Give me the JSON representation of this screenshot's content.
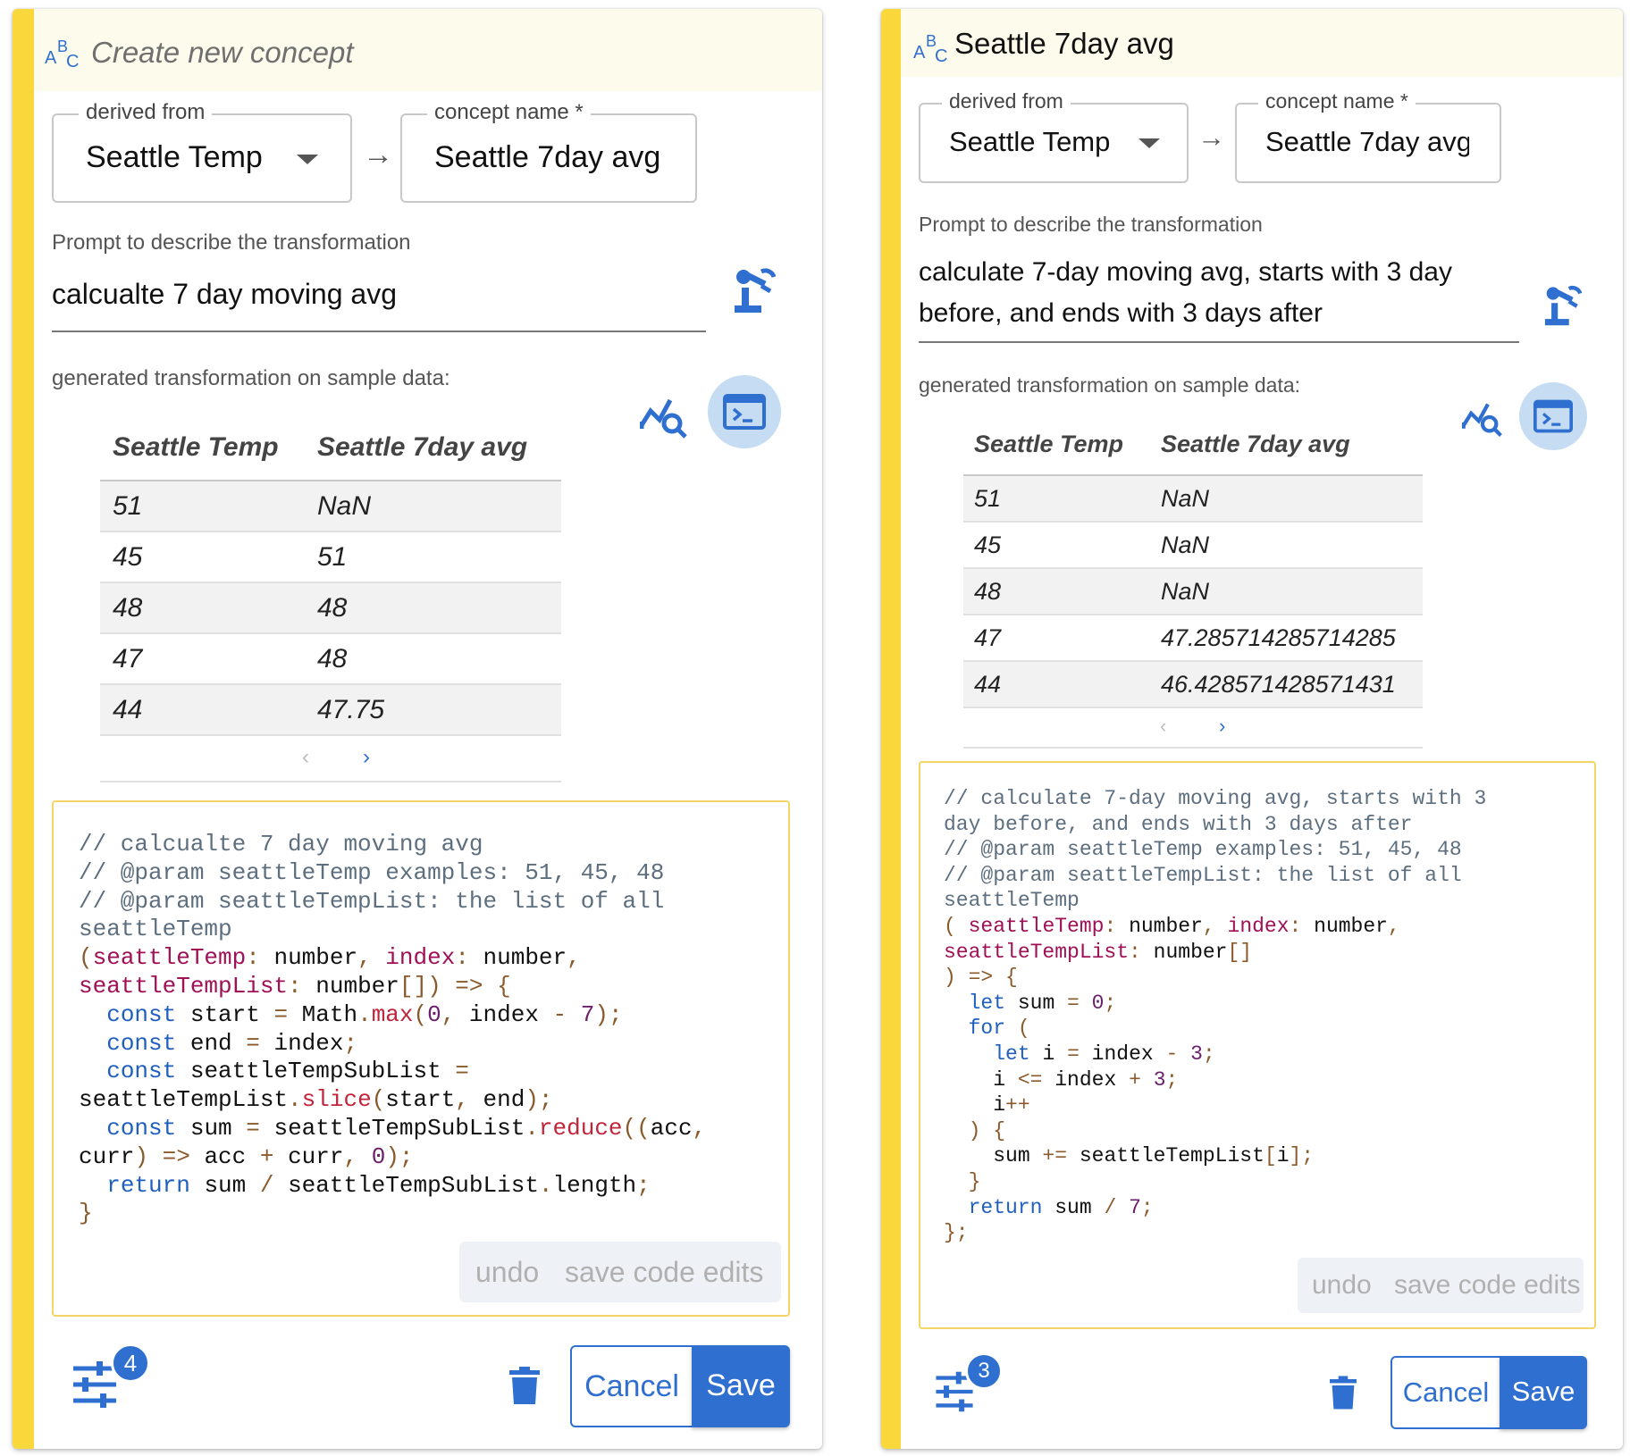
{
  "panels": [
    {
      "title": "Create new concept",
      "derived_from_label": "derived from",
      "derived_from_value": "Seattle Temp",
      "concept_name_label": "concept name *",
      "concept_name_value": "Seattle 7day avg",
      "prompt_label": "Prompt to describe the transformation",
      "prompt_text": "calcualte 7 day moving avg",
      "generated_label": "generated transformation on sample data:",
      "table": {
        "headers": [
          "Seattle Temp",
          "Seattle 7day avg"
        ],
        "rows": [
          [
            "51",
            "NaN"
          ],
          [
            "45",
            "51"
          ],
          [
            "48",
            "48"
          ],
          [
            "47",
            "48"
          ],
          [
            "44",
            "47.75"
          ]
        ]
      },
      "pager": {
        "prev": "‹",
        "next": "›"
      },
      "code_actions": {
        "undo": "undo",
        "save": "save code edits"
      },
      "badge": "4",
      "cancel_label": "Cancel",
      "save_label": "Save"
    },
    {
      "title": "Seattle 7day avg",
      "derived_from_label": "derived from",
      "derived_from_value": "Seattle Temp",
      "concept_name_label": "concept name *",
      "concept_name_value": "Seattle 7day avg",
      "prompt_label": "Prompt to describe the transformation",
      "prompt_text": "calculate 7-day moving avg, starts with 3 day before, and ends with 3 days after",
      "generated_label": "generated transformation on sample data:",
      "table": {
        "headers": [
          "Seattle Temp",
          "Seattle 7day avg"
        ],
        "rows": [
          [
            "51",
            "NaN"
          ],
          [
            "45",
            "NaN"
          ],
          [
            "48",
            "NaN"
          ],
          [
            "47",
            "47.285714285714285"
          ],
          [
            "44",
            "46.428571428571431"
          ]
        ]
      },
      "pager": {
        "prev": "‹",
        "next": "›"
      },
      "code_actions": {
        "undo": "undo",
        "save": "save code edits"
      },
      "badge": "3",
      "cancel_label": "Cancel",
      "save_label": "Save"
    }
  ],
  "code": [
    [
      [
        [
          "c-com",
          "// calcualte 7 day moving avg"
        ]
      ],
      [
        [
          "c-com",
          "// @param seattleTemp examples: 51, 45, 48"
        ]
      ],
      [
        [
          "c-com",
          "// @param seattleTempList: the list of all"
        ]
      ],
      [
        [
          "c-com",
          "seattleTemp"
        ]
      ],
      [
        [
          "c-op",
          "("
        ],
        [
          "c-var",
          "seattleTemp"
        ],
        [
          "c-op",
          ":"
        ],
        [
          "",
          " number"
        ],
        [
          "c-op",
          ","
        ],
        [
          "",
          " "
        ],
        [
          "c-var",
          "index"
        ],
        [
          "c-op",
          ":"
        ],
        [
          "",
          " number"
        ],
        [
          "c-op",
          ","
        ]
      ],
      [
        [
          "c-var",
          "seattleTempList"
        ],
        [
          "c-op",
          ":"
        ],
        [
          "",
          " number"
        ],
        [
          "c-op",
          "[]) => {"
        ]
      ],
      [
        [
          "",
          "  "
        ],
        [
          "c-kw",
          "const"
        ],
        [
          "",
          " start "
        ],
        [
          "c-op",
          "="
        ],
        [
          "",
          " Math"
        ],
        [
          "c-op",
          "."
        ],
        [
          "c-fn",
          "max"
        ],
        [
          "c-op",
          "("
        ],
        [
          "c-num",
          "0"
        ],
        [
          "c-op",
          ","
        ],
        [
          "",
          " index "
        ],
        [
          "c-op",
          "-"
        ],
        [
          "",
          " "
        ],
        [
          "c-num",
          "7"
        ],
        [
          "c-op",
          ");"
        ]
      ],
      [
        [
          "",
          "  "
        ],
        [
          "c-kw",
          "const"
        ],
        [
          "",
          " end "
        ],
        [
          "c-op",
          "="
        ],
        [
          "",
          " index"
        ],
        [
          "c-op",
          ";"
        ]
      ],
      [
        [
          "",
          "  "
        ],
        [
          "c-kw",
          "const"
        ],
        [
          "",
          " seattleTempSubList "
        ],
        [
          "c-op",
          "="
        ]
      ],
      [
        [
          "",
          "seattleTempList"
        ],
        [
          "c-op",
          "."
        ],
        [
          "c-fn",
          "slice"
        ],
        [
          "c-op",
          "("
        ],
        [
          "",
          "start"
        ],
        [
          "c-op",
          ","
        ],
        [
          "",
          " end"
        ],
        [
          "c-op",
          ");"
        ]
      ],
      [
        [
          "",
          "  "
        ],
        [
          "c-kw",
          "const"
        ],
        [
          "",
          " sum "
        ],
        [
          "c-op",
          "="
        ],
        [
          "",
          " seattleTempSubList"
        ],
        [
          "c-op",
          "."
        ],
        [
          "c-fn",
          "reduce"
        ],
        [
          "c-op",
          "(("
        ],
        [
          "",
          "acc"
        ],
        [
          "c-op",
          ","
        ]
      ],
      [
        [
          "",
          "curr"
        ],
        [
          "c-op",
          ") =>"
        ],
        [
          "",
          " acc "
        ],
        [
          "c-op",
          "+"
        ],
        [
          "",
          " curr"
        ],
        [
          "c-op",
          ","
        ],
        [
          "",
          " "
        ],
        [
          "c-num",
          "0"
        ],
        [
          "c-op",
          ");"
        ]
      ],
      [
        [
          "",
          "  "
        ],
        [
          "c-kw",
          "return"
        ],
        [
          "",
          " sum "
        ],
        [
          "c-op",
          "/"
        ],
        [
          "",
          " seattleTempSubList"
        ],
        [
          "c-op",
          "."
        ],
        [
          "",
          "length"
        ],
        [
          "c-op",
          ";"
        ]
      ],
      [
        [
          "c-op",
          "}"
        ]
      ]
    ],
    [
      [
        [
          "c-com",
          "// calculate 7-day moving avg, starts with 3"
        ]
      ],
      [
        [
          "c-com",
          "day before, and ends with 3 days after"
        ]
      ],
      [
        [
          "c-com",
          "// @param seattleTemp examples: 51, 45, 48"
        ]
      ],
      [
        [
          "c-com",
          "// @param seattleTempList: the list of all"
        ]
      ],
      [
        [
          "c-com",
          "seattleTemp"
        ]
      ],
      [
        [
          "c-op",
          "("
        ],
        [
          "",
          " "
        ],
        [
          "c-var",
          "seattleTemp"
        ],
        [
          "c-op",
          ":"
        ],
        [
          "",
          " number"
        ],
        [
          "c-op",
          ","
        ],
        [
          "",
          " "
        ],
        [
          "c-var",
          "index"
        ],
        [
          "c-op",
          ":"
        ],
        [
          "",
          " number"
        ],
        [
          "c-op",
          ","
        ]
      ],
      [
        [
          "c-var",
          "seattleTempList"
        ],
        [
          "c-op",
          ":"
        ],
        [
          "",
          " number"
        ],
        [
          "c-op",
          "[]"
        ]
      ],
      [
        [
          "c-op",
          ") => {"
        ]
      ],
      [
        [
          "",
          "  "
        ],
        [
          "c-kw",
          "let"
        ],
        [
          "",
          " sum "
        ],
        [
          "c-op",
          "="
        ],
        [
          "",
          " "
        ],
        [
          "c-num",
          "0"
        ],
        [
          "c-op",
          ";"
        ]
      ],
      [
        [
          "",
          "  "
        ],
        [
          "c-kw",
          "for"
        ],
        [
          "",
          " "
        ],
        [
          "c-op",
          "("
        ]
      ],
      [
        [
          "",
          "    "
        ],
        [
          "c-kw",
          "let"
        ],
        [
          "",
          " i "
        ],
        [
          "c-op",
          "="
        ],
        [
          "",
          " index "
        ],
        [
          "c-op",
          "-"
        ],
        [
          "",
          " "
        ],
        [
          "c-num",
          "3"
        ],
        [
          "c-op",
          ";"
        ]
      ],
      [
        [
          "",
          "    i "
        ],
        [
          "c-op",
          "<="
        ],
        [
          "",
          " index "
        ],
        [
          "c-op",
          "+"
        ],
        [
          "",
          " "
        ],
        [
          "c-num",
          "3"
        ],
        [
          "c-op",
          ";"
        ]
      ],
      [
        [
          "",
          "    i"
        ],
        [
          "c-op",
          "++"
        ]
      ],
      [
        [
          "",
          "  "
        ],
        [
          "c-op",
          ") {"
        ]
      ],
      [
        [
          "",
          "    sum "
        ],
        [
          "c-op",
          "+="
        ],
        [
          "",
          " seattleTempList"
        ],
        [
          "c-op",
          "["
        ],
        [
          "",
          "i"
        ],
        [
          "c-op",
          "];"
        ]
      ],
      [
        [
          "",
          "  "
        ],
        [
          "c-op",
          "}"
        ]
      ],
      [
        [
          "",
          "  "
        ],
        [
          "c-kw",
          "return"
        ],
        [
          "",
          " sum "
        ],
        [
          "c-op",
          "/"
        ],
        [
          "",
          " "
        ],
        [
          "c-num",
          "7"
        ],
        [
          "c-op",
          ";"
        ]
      ],
      [
        [
          "c-op",
          "};"
        ]
      ]
    ]
  ]
}
